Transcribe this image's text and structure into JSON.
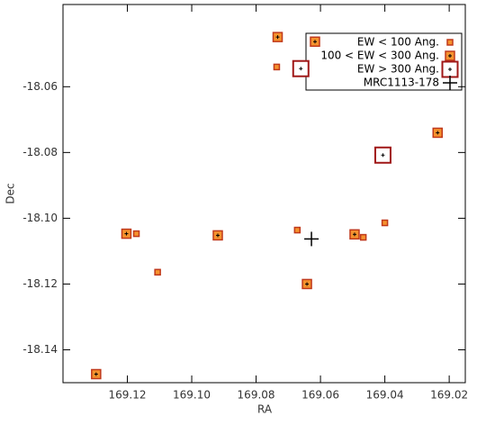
{
  "chart_data": {
    "type": "scatter",
    "x_label": "RA",
    "y_label": "Dec",
    "xlim": [
      169.14,
      169.015
    ],
    "xticks": [
      169.12,
      {
        "value": 169.1,
        "label": "169.10"
      },
      169.08,
      169.06,
      169.04,
      169.02
    ],
    "ylim": [
      -18.15,
      -18.035
    ],
    "yticks": [
      -18.14,
      -18.12,
      {
        "value": -18.1,
        "label": "-18.10"
      },
      -18.08,
      -18.06
    ],
    "legend": "upper right",
    "series": [
      {
        "name": "EW < 100 Ang.",
        "color": "#f5922e",
        "edge": "#c0391b",
        "marker": "square",
        "x": [
          169.0736,
          169.1172,
          169.0672,
          169.0467,
          169.04,
          169.1106
        ],
        "y": [
          -18.054,
          -18.1047,
          -18.1036,
          -18.1058,
          -18.1014,
          -18.1164
        ]
      },
      {
        "name": "100 < EW < 300 Ang.",
        "color": "#f5922e",
        "edge": "#c0391b",
        "marker": "square",
        "x": [
          169.0733,
          169.0617,
          169.0236,
          169.1203,
          169.0919,
          169.0494,
          169.0642,
          169.1297
        ],
        "y": [
          -18.0449,
          -18.0463,
          -18.074,
          -18.1047,
          -18.1052,
          -18.1049,
          -18.12,
          -18.1474
        ]
      },
      {
        "name": "EW > 300 Ang.",
        "color": "#ffffff",
        "edge": "#a01818",
        "marker": "square",
        "x": [
          169.0661,
          169.0406
        ],
        "y": [
          -18.0545,
          -18.0808
        ]
      },
      {
        "name": "MRC1113-178",
        "color": "#000000",
        "edge": "#000000",
        "marker": "plus",
        "x": [
          169.0628
        ],
        "y": [
          -18.1063
        ]
      }
    ]
  }
}
